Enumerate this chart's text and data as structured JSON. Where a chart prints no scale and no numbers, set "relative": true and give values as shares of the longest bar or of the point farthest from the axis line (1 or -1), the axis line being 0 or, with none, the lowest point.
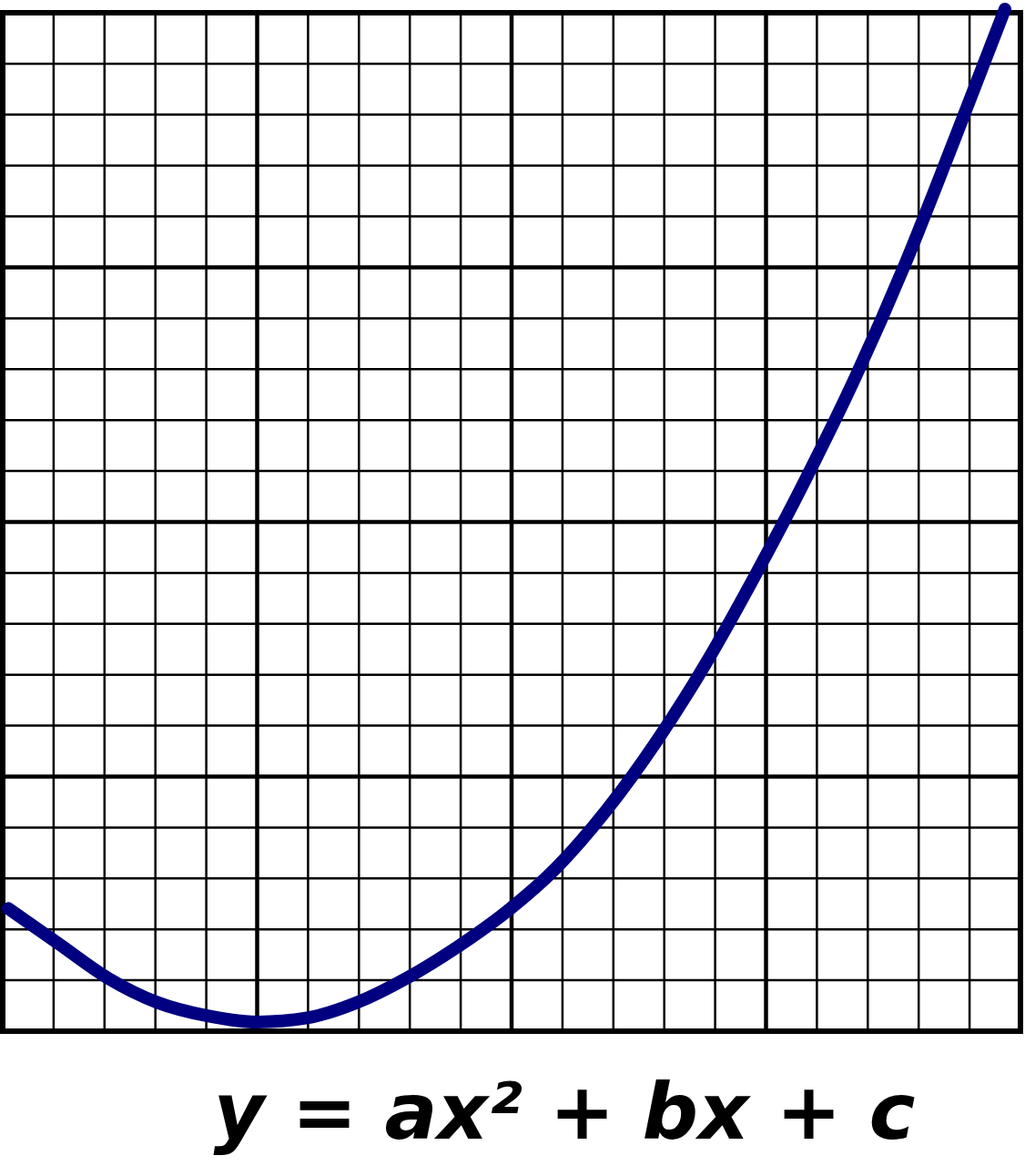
{
  "chart_data": {
    "type": "line",
    "xlabel": "y = ax² + bx + c",
    "relative": true,
    "grid": true,
    "categories": [
      null,
      null,
      null,
      null,
      null,
      null,
      null,
      null,
      null,
      null,
      null,
      null,
      null,
      null,
      null,
      null,
      null,
      null,
      null,
      null,
      null
    ],
    "values": [
      0.12,
      0.086,
      0.052,
      0.028,
      0.015,
      0.009,
      0.013,
      0.028,
      0.052,
      0.082,
      0.117,
      0.16,
      0.216,
      0.283,
      0.36,
      0.447,
      0.54,
      0.64,
      0.751,
      0.874,
      1
    ],
    "color": "#000080"
  }
}
